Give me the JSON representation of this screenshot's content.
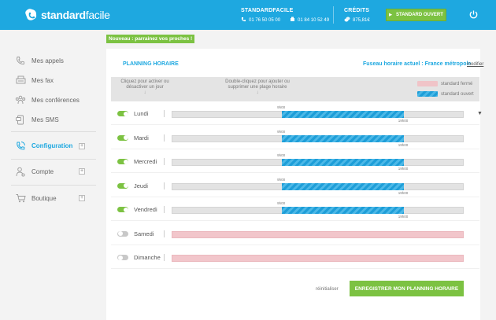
{
  "header": {
    "logo_bold": "standard",
    "logo_light": "facile",
    "account_title": "STANDARDFACILE",
    "phone_1": "01 76 50 05 00",
    "phone_2": "01 84 10 52 49",
    "credits_title": "CRÉDITS",
    "credits_value": "875,81€",
    "standard_button": "STANDARD OUVERT",
    "brand_color": "#1ea8e0",
    "accent_color": "#7cc242"
  },
  "sidebar": {
    "items": [
      {
        "label": "Mes appels",
        "icon": "phone-icon"
      },
      {
        "label": "Mes fax",
        "icon": "fax-icon"
      },
      {
        "label": "Mes conférences",
        "icon": "conference-icon"
      },
      {
        "label": "Mes SMS",
        "icon": "sms-icon"
      },
      {
        "label": "Configuration",
        "icon": "configuration-icon",
        "active": true
      },
      {
        "label": "Compte",
        "icon": "account-icon"
      },
      {
        "label": "Boutique",
        "icon": "cart-icon"
      }
    ]
  },
  "banner": "Nouveau : parrainez vos proches !",
  "planning": {
    "title": "PLANNING HORAIRE",
    "timezone": "Fuseau horaire actuel : France métropole",
    "modify": "modifier",
    "hint_activate": "Cliquez pour activer ou désactiver un jour",
    "hint_range": "Double-cliquez pour ajouter ou supprimer une plage horaire",
    "legend_closed": "standard fermé",
    "legend_open": "standard ouvert",
    "days": [
      {
        "name": "Lundi",
        "enabled": true,
        "open": "9h00",
        "close": "19h00",
        "open_h": 9,
        "close_h": 19
      },
      {
        "name": "Mardi",
        "enabled": true,
        "open": "9h00",
        "close": "19h00",
        "open_h": 9,
        "close_h": 19
      },
      {
        "name": "Mercredi",
        "enabled": true,
        "open": "9h00",
        "close": "19h00",
        "open_h": 9,
        "close_h": 19
      },
      {
        "name": "Jeudi",
        "enabled": true,
        "open": "9h00",
        "close": "19h00",
        "open_h": 9,
        "close_h": 19
      },
      {
        "name": "Vendredi",
        "enabled": true,
        "open": "9h00",
        "close": "19h00",
        "open_h": 9,
        "close_h": 19
      },
      {
        "name": "Samedi",
        "enabled": false
      },
      {
        "name": "Dimanche",
        "enabled": false
      }
    ],
    "reset": "réinitialiser",
    "save_button": "ENREGISTRER MON PLANNING HORAIRE"
  }
}
